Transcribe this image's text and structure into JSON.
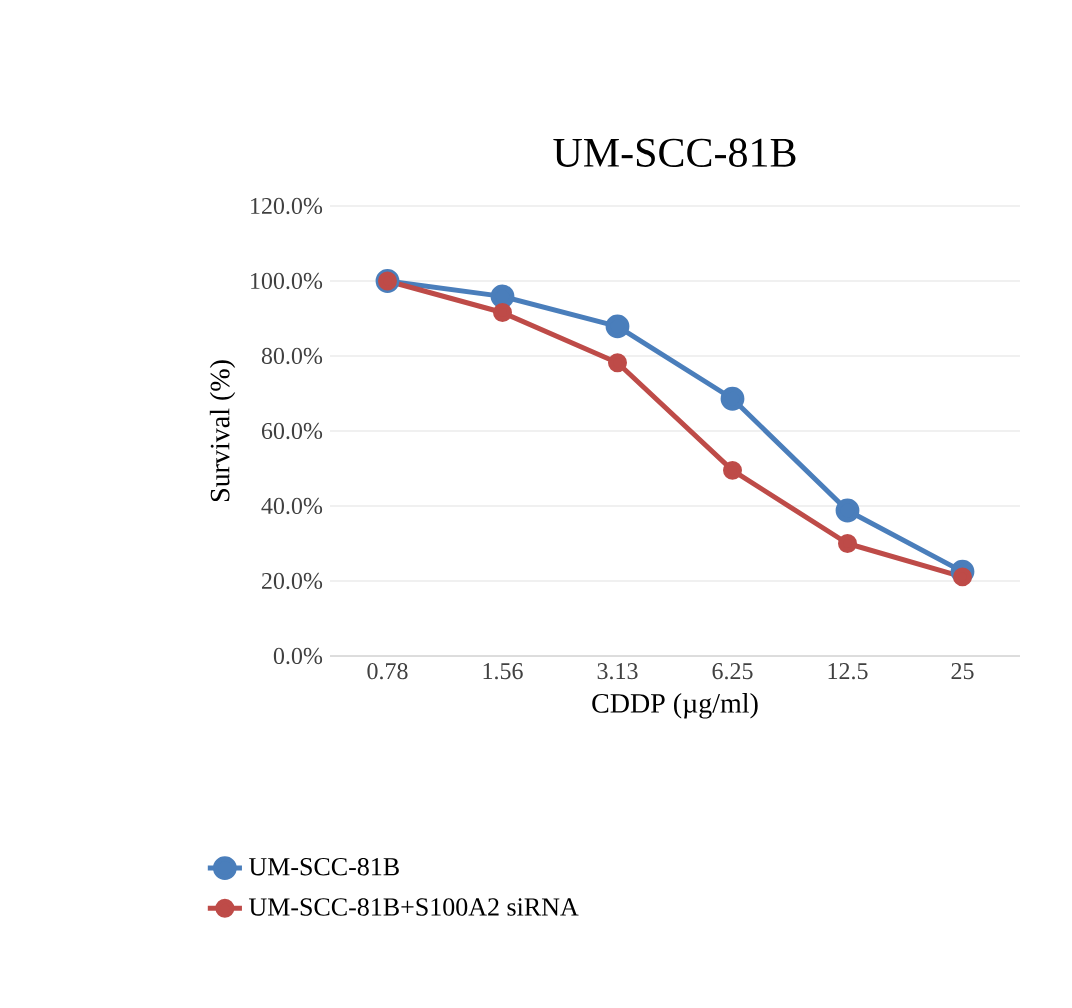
{
  "chart_data": {
    "type": "line",
    "title": "UM-SCC-81B",
    "xlabel": "CDDP (µg/ml)",
    "ylabel": "Survival (%)",
    "categories": [
      "0.78",
      "1.56",
      "3.13",
      "6.25",
      "12.5",
      "25"
    ],
    "series": [
      {
        "name": "UM-SCC-81B",
        "color": "#4a7ebb",
        "values": [
          100,
          95.9,
          87.9,
          68.6,
          38.8,
          22.5
        ]
      },
      {
        "name": "UM-SCC-81B+S100A2 siRNA",
        "color": "#be4b48",
        "values": [
          100,
          91.6,
          78.2,
          49.5,
          30.0,
          21.1
        ]
      }
    ],
    "ylim": [
      0,
      120
    ],
    "yticks": [
      {
        "value": 0,
        "label": "0.0%"
      },
      {
        "value": 20,
        "label": "20.0%"
      },
      {
        "value": 40,
        "label": "40.0%"
      },
      {
        "value": 60,
        "label": "60.0%"
      },
      {
        "value": 80,
        "label": "80.0%"
      },
      {
        "value": 100,
        "label": "100.0%"
      },
      {
        "value": 120,
        "label": "120.0%"
      }
    ],
    "grid": "y",
    "legend": "bottom",
    "marker": "circle",
    "line_style": "solid"
  }
}
